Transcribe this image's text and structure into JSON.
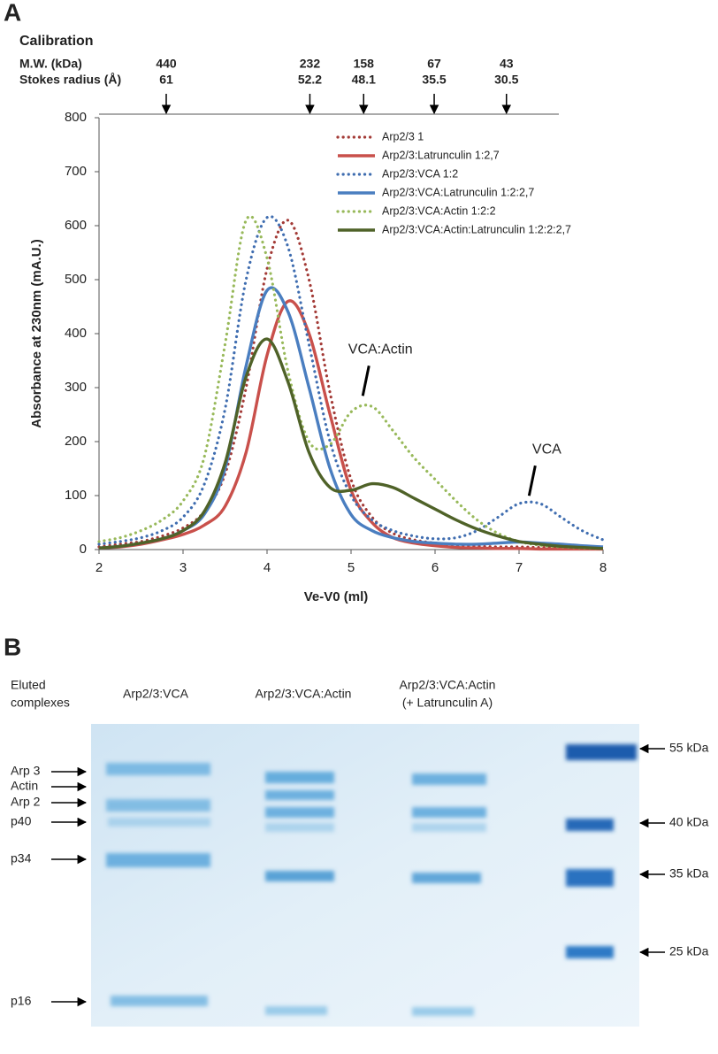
{
  "panel_labels": [
    "A",
    "B"
  ],
  "calibration": {
    "title": "Calibration",
    "mw_label": "M.W. (kDa)",
    "stokes_label": "Stokes radius (Å)",
    "markers": [
      {
        "mw": 440,
        "stokes": 61,
        "x": 2.8
      },
      {
        "mw": 232,
        "stokes": 52.2,
        "x": 4.51
      },
      {
        "mw": 158,
        "stokes": 48.1,
        "x": 5.15
      },
      {
        "mw": 67,
        "stokes": 35.5,
        "x": 5.99
      },
      {
        "mw": 43,
        "stokes": 30.5,
        "x": 6.85
      }
    ]
  },
  "chart_data": {
    "type": "line",
    "x_label": "Ve-V0 (ml)",
    "y_label": "Absorbance at 230nm (mA.U.)",
    "x": [
      2,
      2.25,
      2.5,
      2.75,
      3,
      3.25,
      3.5,
      3.75,
      4,
      4.25,
      4.5,
      4.75,
      5,
      5.25,
      5.5,
      5.75,
      6,
      6.25,
      6.5,
      6.75,
      7,
      7.25,
      7.5,
      7.75,
      8
    ],
    "xlim": [
      2,
      8
    ],
    "xticks": [
      2,
      3,
      4,
      5,
      6,
      7,
      8
    ],
    "ylim": [
      0,
      800
    ],
    "yticks": [
      0,
      100,
      200,
      300,
      400,
      500,
      600,
      700,
      800
    ],
    "grid": false,
    "legend": "top-right",
    "series": [
      {
        "name": "Arp2/3 1",
        "color": "#a33a36",
        "dash": "dotted",
        "values": [
          5,
          10,
          15,
          25,
          40,
          70,
          140,
          300,
          520,
          610,
          500,
          290,
          130,
          60,
          30,
          18,
          12,
          8,
          6,
          5,
          5,
          4,
          4,
          3,
          3
        ]
      },
      {
        "name": "Arp2/3:Latrunculin 1:2,7",
        "color": "#c9504b",
        "dash": "solid",
        "values": [
          3,
          5,
          10,
          18,
          28,
          45,
          80,
          180,
          360,
          460,
          400,
          250,
          110,
          50,
          22,
          12,
          7,
          4,
          3,
          2,
          2,
          1,
          1,
          1,
          1
        ]
      },
      {
        "name": "Arp2/3:VCA 1:2",
        "color": "#3f6db0",
        "dash": "dotted",
        "values": [
          10,
          15,
          22,
          35,
          60,
          120,
          260,
          500,
          615,
          560,
          380,
          200,
          100,
          55,
          35,
          25,
          20,
          22,
          35,
          60,
          85,
          85,
          60,
          35,
          18
        ]
      },
      {
        "name": "Arp2/3:VCA:Latrunculin 1:2:2,7",
        "color": "#4a7ec0",
        "dash": "solid",
        "values": [
          3,
          6,
          12,
          20,
          35,
          65,
          150,
          340,
          480,
          440,
          300,
          150,
          65,
          35,
          22,
          15,
          12,
          10,
          10,
          12,
          14,
          12,
          10,
          7,
          5
        ]
      },
      {
        "name": "Arp2/3:VCA:Actin 1:2:2",
        "color": "#98b95a",
        "dash": "dotted",
        "values": [
          15,
          22,
          35,
          55,
          90,
          170,
          380,
          610,
          540,
          330,
          200,
          195,
          255,
          265,
          220,
          170,
          130,
          90,
          55,
          30,
          15,
          8,
          5,
          3,
          2
        ]
      },
      {
        "name": "Arp2/3:VCA:Actin:Latrunculin 1:2:2:2,7",
        "color": "#4f6228",
        "dash": "solid",
        "values": [
          3,
          6,
          12,
          20,
          35,
          70,
          160,
          320,
          390,
          310,
          180,
          115,
          110,
          122,
          115,
          95,
          75,
          55,
          38,
          25,
          15,
          10,
          6,
          4,
          2
        ]
      }
    ],
    "annotations": [
      {
        "text": "VCA:Actin",
        "x": 5.35,
        "y": 370
      },
      {
        "text": "VCA",
        "x": 7.33,
        "y": 185
      }
    ]
  },
  "gel": {
    "row_header": [
      "Eluted",
      "complexes"
    ],
    "lanes": [
      [
        "Arp2/3:VCA"
      ],
      [
        "Arp2/3:VCA:Actin"
      ],
      [
        "Arp2/3:VCA:Actin",
        "(+ Latrunculin A)"
      ]
    ],
    "left_labels": [
      "Arp 3",
      "Actin",
      "Arp 2",
      "p40",
      "p34",
      "p16"
    ],
    "right_labels": [
      "55 kDa",
      "40 kDa",
      "35 kDa",
      "25 kDa"
    ]
  }
}
